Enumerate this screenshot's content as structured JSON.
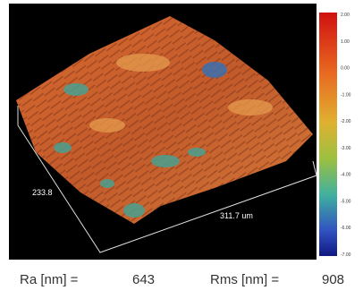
{
  "image": {
    "scale_labels": [
      "2.00",
      "1.00",
      "0.00",
      "-1.00",
      "-2.00",
      "-3.00",
      "-4.00",
      "-5.00",
      "-6.00",
      "-7.00"
    ],
    "axis_y_label": "233.8",
    "axis_x_label": "311.7 um"
  },
  "stats": [
    {
      "label": "Ra [nm] =",
      "value": "643"
    },
    {
      "label": "Rms [nm] =",
      "value": "908"
    }
  ]
}
